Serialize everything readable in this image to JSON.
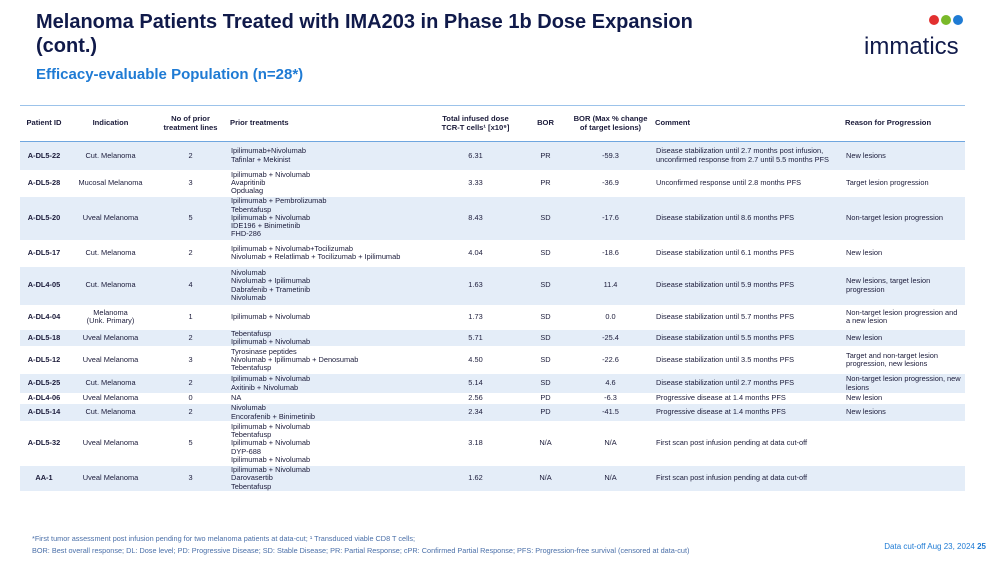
{
  "header": {
    "title": "Melanoma Patients Treated with IMA203 in Phase 1b Dose Expansion\n(cont.)",
    "subtitle": "Efficacy-evaluable Population (n=28*)",
    "logo": "immatics"
  },
  "table": {
    "columns": [
      "Patient ID",
      "Indication",
      "No of prior\ntreatment lines",
      "Prior treatments",
      "Total infused dose\nTCR-T cells¹ [x10⁹]",
      "BOR",
      "BOR (Max % change\nof target lesions)",
      "Comment",
      "Reason for Progression"
    ],
    "rows": [
      [
        "A-DL5-22",
        "Cut. Melanoma",
        "2",
        "Ipilimumab+Nivolumab\nTafinlar + Mekinist",
        "6.31",
        "PR",
        "-59.3",
        "Disease stabilization until 2.7 months post infusion, unconfirmed response from 2.7 until 5.5 months PFS",
        "New lesions"
      ],
      [
        "A-DL5-28",
        "Mucosal Melanoma",
        "3",
        "Ipilimumab + Nivolumab\nAvapritinib\nOpdualag",
        "3.33",
        "PR",
        "-36.9",
        "Unconfirmed response until 2.8 months PFS",
        "Target lesion progression"
      ],
      [
        "A-DL5-20",
        "Uveal Melanoma",
        "5",
        "Ipilimumab + Pembrolizumab\nTebentafusp\nIpilimumab + Nivolumab\nIDE196 + Binimetinib\nFHD-286",
        "8.43",
        "SD",
        "-17.6",
        "Disease stabilization until 8.6 months PFS",
        "Non-target lesion progression"
      ],
      [
        "A-DL5-17",
        "Cut. Melanoma",
        "2",
        "Ipilimumab + Nivolumab+Tocilizumab\nNivolumab + Relatlimab + Tocilizumab + Ipilimumab",
        "4.04",
        "SD",
        "-18.6",
        "Disease stabilization until 6.1 months PFS",
        "New lesion"
      ],
      [
        "A-DL4-05",
        "Cut. Melanoma",
        "4",
        "Nivolumab\nNivolumab + Ipilimumab\nDabrafenib + Trametinib\nNivolumab",
        "1.63",
        "SD",
        "11.4",
        "Disease stabilization until 5.9 months PFS",
        "New lesions, target lesion progression"
      ],
      [
        "A-DL4-04",
        "Melanoma\n(Unk. Primary)",
        "1",
        "Ipilimumab + Nivolumab",
        "1.73",
        "SD",
        "0.0",
        "Disease stabilization until 5.7 months PFS",
        "Non-target lesion progression and a new lesion"
      ],
      [
        "A-DL5-18",
        "Uveal Melanoma",
        "2",
        "Tebentafusp\nIpilimumab + Nivolumab",
        "5.71",
        "SD",
        "-25.4",
        "Disease stabilization until 5.5 months PFS",
        "New lesion"
      ],
      [
        "A-DL5-12",
        "Uveal Melanoma",
        "3",
        "Tyrosinase peptides\nNivolumab + Ipilimumab + Denosumab\nTebentafusp",
        "4.50",
        "SD",
        "-22.6",
        "Disease stabilization until 3.5 months PFS",
        "Target and non-target lesion progression, new lesions"
      ],
      [
        "A-DL5-25",
        "Cut. Melanoma",
        "2",
        "Ipilimumab + Nivolumab\nAxitinib + Nivolumab",
        "5.14",
        "SD",
        "4.6",
        "Disease stabilization until 2.7 months PFS",
        "Non-target lesion progression, new lesions"
      ],
      [
        "A-DL4-06",
        "Uveal Melanoma",
        "0",
        "NA",
        "2.56",
        "PD",
        "-6.3",
        "Progressive disease at 1.4 months PFS",
        "New lesion"
      ],
      [
        "A-DL5-14",
        "Cut. Melanoma",
        "2",
        "Nivolumab\nEncorafenib + Binimetinib",
        "2.34",
        "PD",
        "-41.5",
        "Progressive disease at 1.4 months PFS",
        "New lesions"
      ],
      [
        "A-DL5-32",
        "Uveal Melanoma",
        "5",
        "Ipilimumab + Nivolumab\nTebentafusp\nIpilimumab + Nivolumab\nDYP-688\nIpilimumab + Nivolumab",
        "3.18",
        "N/A",
        "N/A",
        "First scan post infusion pending at data cut-off"
      ],
      [
        "AA-1",
        "Uveal Melanoma",
        "3",
        "Ipilimumab + Nivolumab\nDarovasertib\nTebentafusp",
        "1.62",
        "N/A",
        "N/A",
        "First scan post infusion pending at data cut-off"
      ]
    ]
  },
  "footer": {
    "notes": [
      "*First tumor assessment post infusion pending for two melanoma patients at data-cut; ¹ Transduced viable CD8 T cells;",
      "BOR: Best overall response; DL: Dose level; PD: Progressive Disease; SD: Stable Disease; PR: Partial Response; cPR: Confirmed Partial Response; PFS: Progression-free survival (censored at data-cut)"
    ],
    "cutoff": "Data cut-off Aug 23, 2024",
    "page": "25"
  }
}
